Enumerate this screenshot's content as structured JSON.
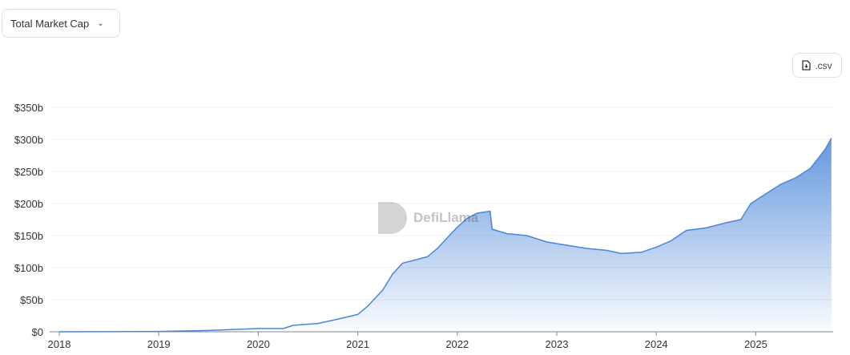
{
  "controls": {
    "metric_select": "Total Market Cap",
    "csv_label": ".csv"
  },
  "watermark": "DefiLlama",
  "chart_data": {
    "type": "area",
    "title": "",
    "xlabel": "",
    "ylabel": "",
    "xlim": [
      2018,
      2025.76
    ],
    "ylim": [
      0,
      350
    ],
    "x_ticks": [
      "2018",
      "2019",
      "2020",
      "2021",
      "2022",
      "2023",
      "2024",
      "2025"
    ],
    "y_ticks": [
      "$0",
      "$50b",
      "$100b",
      "$150b",
      "$200b",
      "$250b",
      "$300b",
      "$350b"
    ],
    "grid": true,
    "color": "#4a86d8",
    "series": [
      {
        "x": [
          2018.0,
          2019.0,
          2019.5,
          2020.0,
          2020.25,
          2020.35,
          2020.6,
          2020.75,
          2021.0,
          2021.1,
          2021.25,
          2021.35,
          2021.45,
          2021.6,
          2021.7,
          2021.8,
          2021.95,
          2022.0,
          2022.1,
          2022.2,
          2022.33,
          2022.35,
          2022.5,
          2022.7,
          2022.9,
          2023.1,
          2023.3,
          2023.5,
          2023.65,
          2023.85,
          2024.0,
          2024.15,
          2024.3,
          2024.5,
          2024.7,
          2024.85,
          2024.95,
          2025.1,
          2025.25,
          2025.4,
          2025.55,
          2025.7,
          2025.76
        ],
        "y": [
          0,
          0.5,
          2,
          5,
          5,
          10,
          13,
          18,
          27,
          40,
          65,
          90,
          107,
          113,
          117,
          130,
          155,
          163,
          177,
          185,
          188,
          160,
          153,
          150,
          140,
          135,
          130,
          127,
          122,
          124,
          132,
          142,
          158,
          162,
          170,
          175,
          200,
          215,
          230,
          240,
          255,
          285,
          302
        ]
      }
    ]
  }
}
